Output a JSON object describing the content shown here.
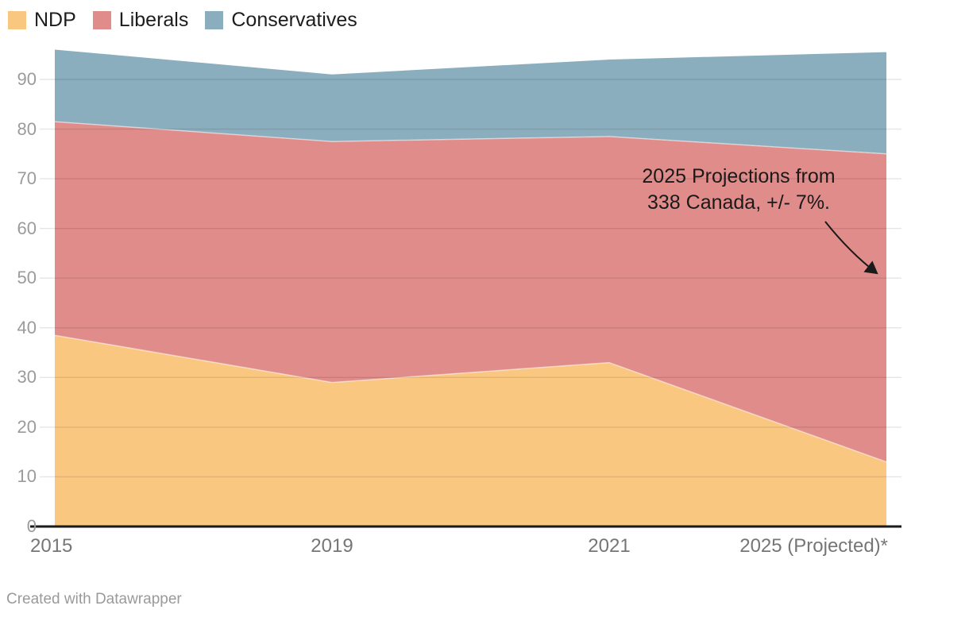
{
  "legend": {
    "position": "top-left",
    "items": [
      {
        "label": "NDP",
        "color": "#FAC780"
      },
      {
        "label": "Liberals",
        "color": "#E08C8A"
      },
      {
        "label": "Conservatives",
        "color": "#8BAEBE"
      }
    ]
  },
  "chart_data": {
    "type": "area",
    "stacked": true,
    "categories": [
      "2015",
      "2019",
      "2021",
      "2025 (Projected)*"
    ],
    "series": [
      {
        "name": "NDP",
        "color": "#FAC780",
        "values": [
          38.5,
          29,
          33,
          13
        ]
      },
      {
        "name": "Liberals",
        "color": "#E08C8A",
        "values": [
          43,
          48.5,
          45.5,
          62
        ]
      },
      {
        "name": "Conservatives",
        "color": "#8BAEBE",
        "values": [
          14.5,
          13.5,
          15.5,
          20.5
        ]
      }
    ],
    "cumulative_tops": {
      "NDP": [
        38.5,
        29,
        33,
        13
      ],
      "Liberals": [
        81.5,
        77.5,
        78.5,
        75
      ],
      "Conservatives": [
        96,
        91,
        94,
        95.5
      ]
    },
    "title": "",
    "xlabel": "",
    "ylabel": "",
    "ylim": [
      0,
      96
    ],
    "yticks": [
      0,
      10,
      20,
      30,
      40,
      50,
      60,
      70,
      80,
      90
    ],
    "grid": "horizontal",
    "legend_position": "top-left"
  },
  "annotation": {
    "line1": "2025 Projections from",
    "line2": "338 Canada, +/- 7%."
  },
  "footer": {
    "text": "Created with Datawrapper"
  },
  "colors": {
    "y_label": "#9b9b9b",
    "x_label": "#767676",
    "baseline": "#1a1a1a",
    "gridline_overlay": "rgba(0,0,0,0.10)",
    "area_edge": "rgba(255,255,255,0.5)",
    "annotation_text": "#1a1a1a",
    "footer_text": "#9a9a9a"
  }
}
